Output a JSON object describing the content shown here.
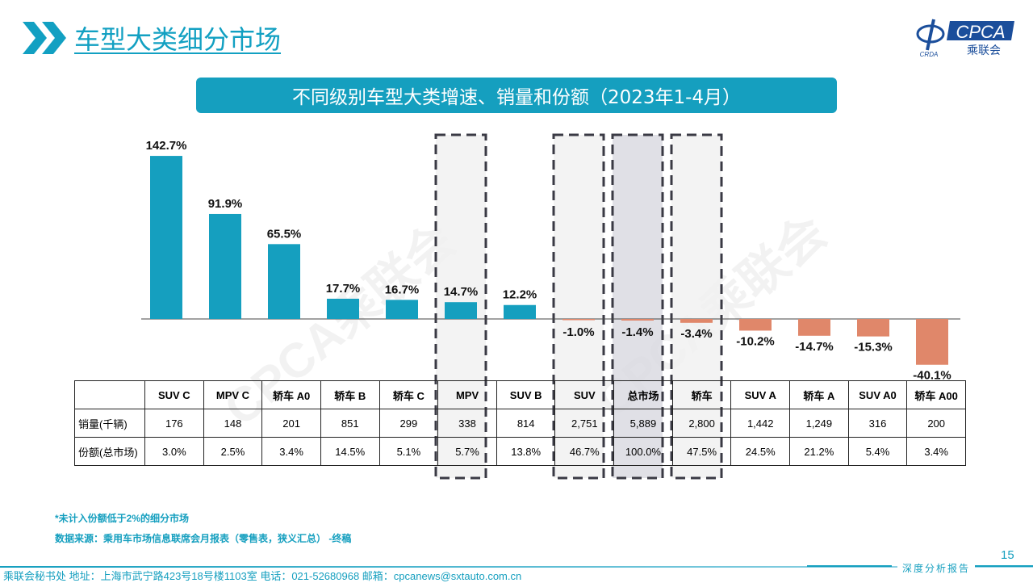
{
  "header": {
    "title": "车型大类细分市场",
    "logo_text": "CPCA",
    "logo_sub": "乘联会",
    "logo_small": "CRDA"
  },
  "chart_data": {
    "type": "bar",
    "title": "不同级别车型大类增速、销量和份额（2023年1-4月）",
    "categories": [
      "SUV C",
      "MPV C",
      "轿车 A0",
      "轿车 B",
      "轿车 C",
      "MPV",
      "SUV B",
      "SUV",
      "总市场",
      "轿车",
      "SUV A",
      "轿车 A",
      "SUV A0",
      "轿车 A00"
    ],
    "values": [
      142.7,
      91.9,
      65.5,
      17.7,
      16.7,
      14.7,
      12.2,
      -1.0,
      -1.4,
      -3.4,
      -10.2,
      -14.7,
      -15.3,
      -40.1
    ],
    "labels": [
      "142.7%",
      "91.9%",
      "65.5%",
      "17.7%",
      "16.7%",
      "14.7%",
      "12.2%",
      "-1.0%",
      "-1.4%",
      "-3.4%",
      "-10.2%",
      "-14.7%",
      "-15.3%",
      "-40.1%"
    ],
    "unit": "%",
    "highlighted": [
      "MPV",
      "SUV",
      "总市场",
      "轿车"
    ],
    "colors": {
      "positive": "#159fbf",
      "negative": "#e0876a",
      "highlight_fill": "#f0f0f0",
      "total_fill": "#d8d8e0"
    },
    "table": {
      "rows": [
        {
          "label": "销量(千辆)",
          "values": [
            "176",
            "148",
            "201",
            "851",
            "299",
            "338",
            "814",
            "2,751",
            "5,889",
            "2,800",
            "1,442",
            "1,249",
            "316",
            "200"
          ]
        },
        {
          "label": "份额(总市场)",
          "values": [
            "3.0%",
            "2.5%",
            "3.4%",
            "14.5%",
            "5.1%",
            "5.7%",
            "13.8%",
            "46.7%",
            "100.0%",
            "47.5%",
            "24.5%",
            "21.2%",
            "5.4%",
            "3.4%"
          ]
        }
      ]
    }
  },
  "notes": [
    "*未计入份额低于2%的细分市场",
    "数据来源：乘用车市场信息联席会月报表（零售表，狭义汇总） -终稿"
  ],
  "footer": {
    "text": "乘联会秘书处   地址：上海市武宁路423号18号楼1103室  电话：021-52680968   邮箱：cpcanews@sxtauto.com.cn",
    "report": "深度分析报告",
    "page": "15"
  }
}
